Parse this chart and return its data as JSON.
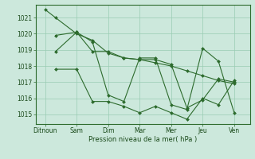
{
  "ylabel": "Pression niveau de la mer( hPa )",
  "xtick_labels": [
    "Ditnoun",
    "Sam",
    "Dim",
    "Mar",
    "Mer",
    "Jeu",
    "Ven"
  ],
  "xtick_positions": [
    0,
    1,
    2,
    3,
    4,
    5,
    6
  ],
  "ylim": [
    1014.4,
    1021.8
  ],
  "yticks": [
    1015,
    1016,
    1017,
    1018,
    1019,
    1020,
    1021
  ],
  "background_color": "#cce8dc",
  "grid_color": "#99ccb3",
  "line_color": "#2d6b2d",
  "series": [
    {
      "x": [
        0.0,
        0.33,
        1.0,
        1.5,
        2.0,
        2.5,
        3.0,
        3.5,
        4.0,
        4.5,
        5.0,
        5.5,
        6.0
      ],
      "y": [
        1021.5,
        1021.0,
        1020.0,
        1019.6,
        1018.8,
        1018.5,
        1018.4,
        1018.2,
        1018.0,
        1017.7,
        1017.4,
        1017.1,
        1016.9
      ]
    },
    {
      "x": [
        0.33,
        1.0,
        1.5,
        2.0,
        2.5,
        3.0,
        3.5,
        4.0,
        4.5,
        5.0,
        5.5,
        6.0
      ],
      "y": [
        1019.9,
        1020.1,
        1018.9,
        1018.9,
        1018.5,
        1018.4,
        1018.4,
        1018.1,
        1015.4,
        1015.9,
        1017.2,
        1017.0
      ]
    },
    {
      "x": [
        0.33,
        1.0,
        1.5,
        2.0,
        2.5,
        3.0,
        3.5,
        4.0,
        4.5,
        5.0,
        5.5,
        6.0
      ],
      "y": [
        1018.9,
        1020.1,
        1019.5,
        1016.2,
        1015.8,
        1018.5,
        1018.5,
        1015.6,
        1015.3,
        1019.1,
        1018.3,
        1015.1
      ]
    },
    {
      "x": [
        0.33,
        1.0,
        1.5,
        2.0,
        2.5,
        3.0,
        3.5,
        4.0,
        4.5,
        5.0,
        5.5,
        6.0
      ],
      "y": [
        1017.8,
        1017.8,
        1015.8,
        1015.8,
        1015.5,
        1015.1,
        1015.5,
        1015.1,
        1014.7,
        1016.0,
        1015.6,
        1017.1
      ]
    }
  ]
}
